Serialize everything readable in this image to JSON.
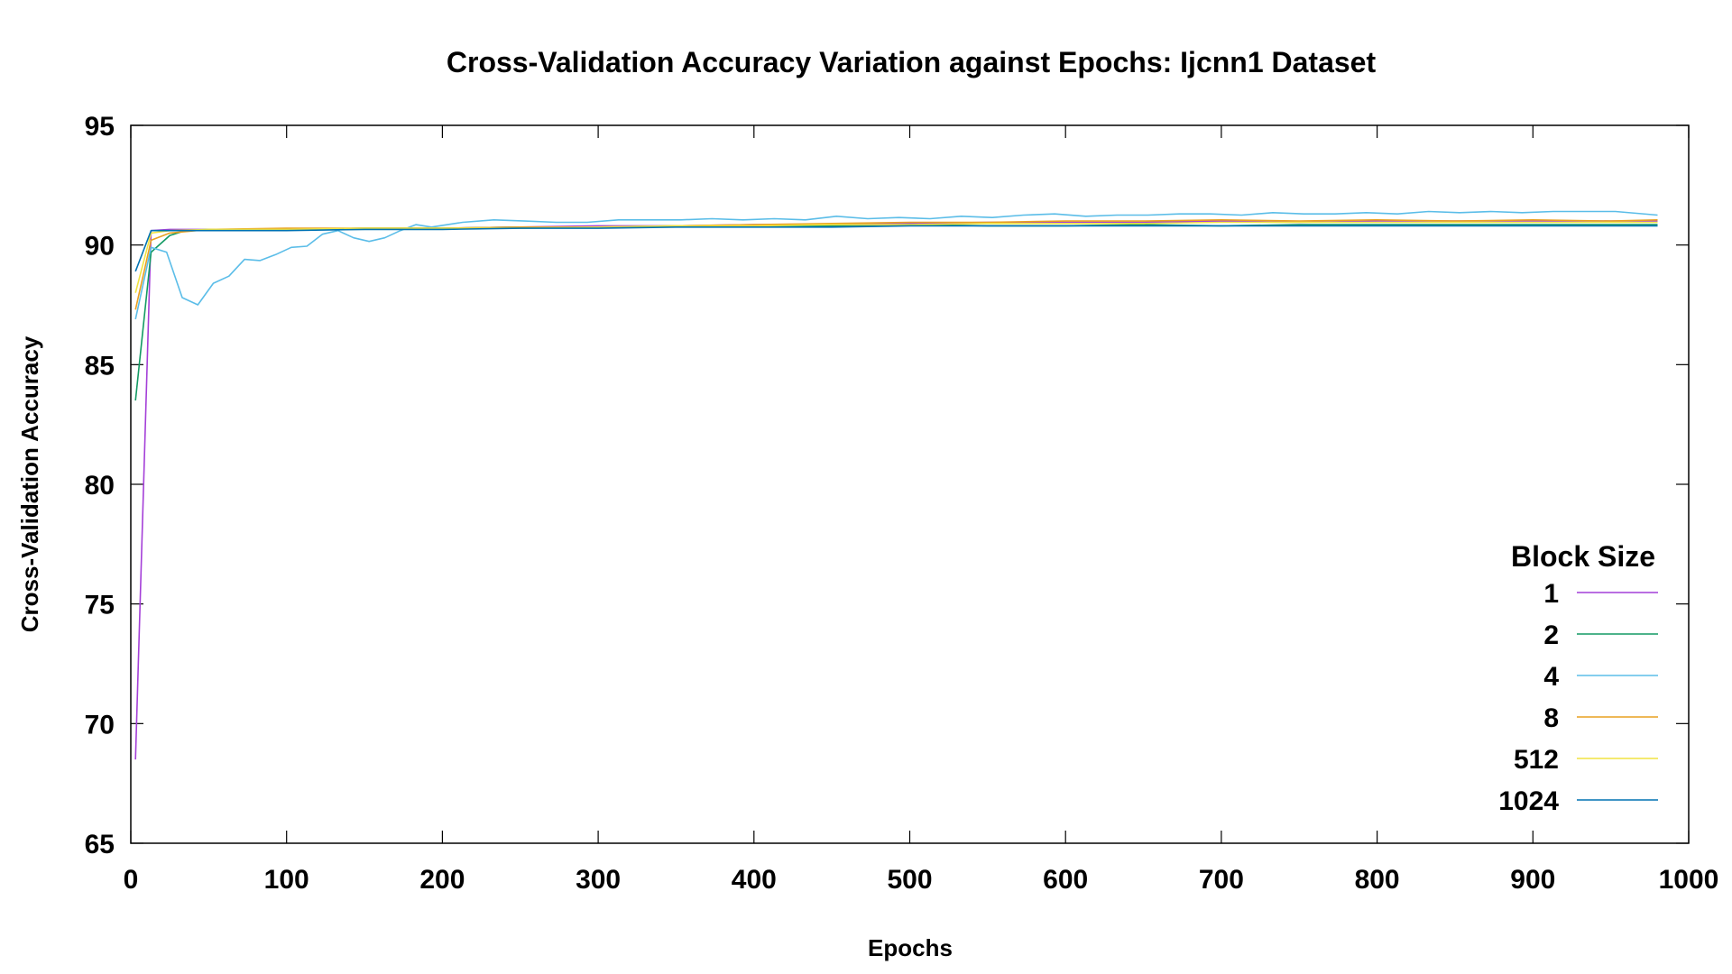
{
  "chart_data": {
    "type": "line",
    "title": "Cross-Validation Accuracy Variation against Epochs: Ijcnn1 Dataset",
    "xlabel": "Epochs",
    "ylabel": "Cross-Validation Accuracy",
    "xlim": [
      0,
      1000
    ],
    "ylim": [
      65,
      95
    ],
    "xticks": [
      0,
      100,
      200,
      300,
      400,
      500,
      600,
      700,
      800,
      900,
      1000
    ],
    "yticks": [
      65,
      70,
      75,
      80,
      85,
      90,
      95
    ],
    "grid": false,
    "legend_title": "Block Size",
    "legend_position": "bottom-right",
    "series": [
      {
        "name": "1",
        "color": "#a43fd8",
        "x": [
          3,
          13,
          25,
          50,
          100,
          150,
          200,
          250,
          300,
          350,
          400,
          450,
          500,
          550,
          600,
          650,
          700,
          750,
          800,
          850,
          900,
          950,
          980
        ],
        "values": [
          68.5,
          90.6,
          90.65,
          90.65,
          90.65,
          90.7,
          90.7,
          90.75,
          90.8,
          90.8,
          90.85,
          90.85,
          90.9,
          90.95,
          90.95,
          90.95,
          91.0,
          90.95,
          91.0,
          91.0,
          91.0,
          91.0,
          91.0
        ]
      },
      {
        "name": "2",
        "color": "#129a63",
        "x": [
          3,
          13,
          25,
          35,
          50,
          100,
          150,
          200,
          250,
          300,
          350,
          400,
          450,
          500,
          550,
          600,
          650,
          700,
          750,
          800,
          850,
          900,
          950,
          980
        ],
        "values": [
          83.5,
          89.7,
          90.4,
          90.6,
          90.65,
          90.65,
          90.7,
          90.7,
          90.75,
          90.75,
          90.8,
          90.8,
          90.8,
          90.85,
          90.8,
          90.8,
          90.85,
          90.8,
          90.85,
          90.85,
          90.85,
          90.85,
          90.85,
          90.85
        ]
      },
      {
        "name": "4",
        "color": "#5bbde8",
        "x": [
          3,
          13,
          23,
          33,
          43,
          53,
          63,
          73,
          83,
          93,
          103,
          113,
          123,
          133,
          143,
          153,
          163,
          173,
          183,
          193,
          213,
          233,
          253,
          273,
          293,
          313,
          333,
          353,
          373,
          393,
          413,
          433,
          453,
          473,
          493,
          513,
          533,
          553,
          573,
          593,
          613,
          633,
          653,
          673,
          693,
          713,
          733,
          753,
          773,
          793,
          813,
          833,
          853,
          873,
          893,
          913,
          933,
          953,
          980
        ],
        "values": [
          86.9,
          89.9,
          89.7,
          87.8,
          87.5,
          88.4,
          88.7,
          89.4,
          89.35,
          89.6,
          89.9,
          89.95,
          90.45,
          90.6,
          90.3,
          90.15,
          90.3,
          90.6,
          90.85,
          90.75,
          90.95,
          91.05,
          91.0,
          90.95,
          90.95,
          91.05,
          91.05,
          91.05,
          91.1,
          91.05,
          91.1,
          91.05,
          91.2,
          91.1,
          91.15,
          91.1,
          91.2,
          91.15,
          91.25,
          91.3,
          91.2,
          91.25,
          91.25,
          91.3,
          91.3,
          91.25,
          91.35,
          91.3,
          91.3,
          91.35,
          91.3,
          91.4,
          91.35,
          91.4,
          91.35,
          91.4,
          91.4,
          91.4,
          91.25
        ]
      },
      {
        "name": "8",
        "color": "#e9a020",
        "x": [
          3,
          13,
          25,
          50,
          100,
          150,
          200,
          250,
          300,
          350,
          400,
          450,
          500,
          550,
          600,
          650,
          700,
          750,
          800,
          850,
          900,
          950,
          980
        ],
        "values": [
          87.3,
          90.2,
          90.5,
          90.65,
          90.7,
          90.7,
          90.7,
          90.75,
          90.75,
          90.8,
          90.85,
          90.9,
          90.95,
          90.95,
          91.0,
          91.0,
          91.05,
          91.0,
          91.05,
          91.0,
          91.05,
          91.0,
          91.05
        ]
      },
      {
        "name": "512",
        "color": "#f0e442",
        "x": [
          3,
          13,
          25,
          50,
          100,
          150,
          200,
          250,
          300,
          350,
          400,
          450,
          500,
          550,
          600,
          650,
          700,
          750,
          800,
          850,
          900,
          950,
          980
        ],
        "values": [
          88.0,
          90.5,
          90.6,
          90.65,
          90.65,
          90.7,
          90.7,
          90.7,
          90.75,
          90.8,
          90.8,
          90.85,
          90.85,
          90.9,
          90.9,
          90.9,
          90.95,
          90.95,
          90.95,
          90.95,
          90.95,
          90.95,
          90.95
        ]
      },
      {
        "name": "1024",
        "color": "#0072b2",
        "x": [
          3,
          13,
          25,
          50,
          100,
          150,
          200,
          250,
          300,
          350,
          400,
          450,
          500,
          550,
          600,
          650,
          700,
          750,
          800,
          850,
          900,
          950,
          980
        ],
        "values": [
          88.9,
          90.6,
          90.6,
          90.6,
          90.6,
          90.65,
          90.65,
          90.7,
          90.7,
          90.75,
          90.75,
          90.75,
          90.8,
          90.8,
          90.8,
          90.8,
          90.8,
          90.8,
          90.8,
          90.8,
          90.8,
          90.8,
          90.8
        ]
      }
    ]
  }
}
